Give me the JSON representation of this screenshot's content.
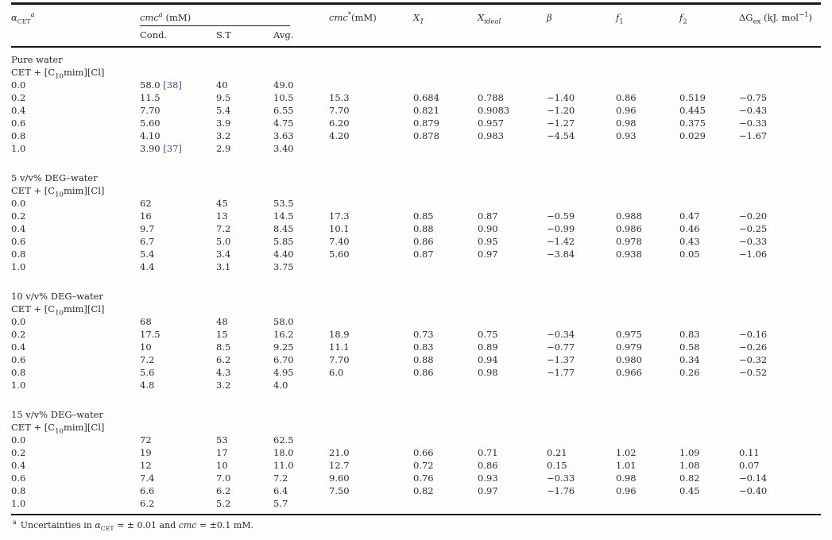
{
  "table": {
    "header": {
      "alpha": {
        "main": "α",
        "sub": "CET",
        "sup": "a"
      },
      "cmc_group": {
        "main": "cmc",
        "sup": "a",
        "unit": " (mM)"
      },
      "sub_columns": [
        "Cond.",
        "S.T",
        "Avg."
      ],
      "cmc_star": {
        "main": "cmc",
        "sup": "*",
        "unit": "(mM)"
      },
      "x1": {
        "main": "X",
        "sub": "1"
      },
      "x_ideal": {
        "main": "X",
        "sub": "ideal"
      },
      "beta": {
        "main": "β"
      },
      "f1": {
        "main": "f",
        "sub": "1"
      },
      "f2": {
        "main": "f",
        "sub": "2"
      },
      "delta_g": {
        "main": "ΔG",
        "sub": "ex",
        "unit_pre": " (kJ. mol",
        "unit_sup": "−1",
        "unit_post": ")"
      }
    },
    "sections": [
      {
        "label": "Pure water",
        "system": {
          "pre": "CET + [C",
          "sub": "10",
          "post": "mim][Cl]"
        },
        "rows": [
          {
            "alpha": "0.0",
            "cond": "58.0",
            "cond_cite": "[38]",
            "st": "40",
            "avg": "49.0"
          },
          {
            "alpha": "0.2",
            "cond": "11.5",
            "st": "9.5",
            "avg": "10.5",
            "cmc_star": "15.3",
            "x1": "0.684",
            "x_ideal": "0.788",
            "beta": "−1.40",
            "f1": "0.86",
            "f2": "0.519",
            "dg": "−0.75"
          },
          {
            "alpha": "0.4",
            "cond": "7.70",
            "st": "5.4",
            "avg": "6.55",
            "cmc_star": "7.70",
            "x1": "0.821",
            "x_ideal": "0.9083",
            "beta": "−1.20",
            "f1": "0.96",
            "f2": "0.445",
            "dg": "−0.43"
          },
          {
            "alpha": "0.6",
            "cond": "5.60",
            "st": "3.9",
            "avg": "4.75",
            "cmc_star": "6.20",
            "x1": "0.879",
            "x_ideal": "0.957",
            "beta": "−1.27",
            "f1": "0.98",
            "f2": "0.375",
            "dg": "−0.33"
          },
          {
            "alpha": "0.8",
            "cond": "4.10",
            "st": "3.2",
            "avg": "3.63",
            "cmc_star": "4.20",
            "x1": "0.878",
            "x_ideal": "0.983",
            "beta": "−4.54",
            "f1": "0.93",
            "f2": "0.029",
            "dg": "−1.67"
          },
          {
            "alpha": "1.0",
            "cond": "3.90",
            "cond_cite": "[37]",
            "st": "2.9",
            "avg": "3.40"
          }
        ]
      },
      {
        "label": "5 v/v% DEG–water",
        "system": {
          "pre": "CET + [C",
          "sub": "10",
          "post": "mim][Cl]"
        },
        "rows": [
          {
            "alpha": "0.0",
            "cond": "62",
            "st": "45",
            "avg": "53.5"
          },
          {
            "alpha": "0.2",
            "cond": "16",
            "st": "13",
            "avg": "14.5",
            "cmc_star": "17.3",
            "x1": "0.85",
            "x_ideal": "0.87",
            "beta": "−0.59",
            "f1": "0.988",
            "f2": "0.47",
            "dg": "−0.20"
          },
          {
            "alpha": "0.4",
            "cond": "9.7",
            "st": "7.2",
            "avg": "8.45",
            "cmc_star": "10.1",
            "x1": "0.88",
            "x_ideal": "0.90",
            "beta": "−0.99",
            "f1": "0.986",
            "f2": "0.46",
            "dg": "−0.25"
          },
          {
            "alpha": "0.6",
            "cond": "6.7",
            "st": "5.0",
            "avg": "5.85",
            "cmc_star": "7.40",
            "x1": "0.86",
            "x_ideal": "0.95",
            "beta": "−1.42",
            "f1": "0.978",
            "f2": "0.43",
            "dg": "−0.33"
          },
          {
            "alpha": "0.8",
            "cond": "5.4",
            "st": "3.4",
            "avg": "4.40",
            "cmc_star": "5.60",
            "x1": "0.87",
            "x_ideal": "0.97",
            "beta": "−3.84",
            "f1": "0.938",
            "f2": "0.05",
            "dg": "−1.06"
          },
          {
            "alpha": "1.0",
            "cond": "4.4",
            "st": "3.1",
            "avg": "3.75"
          }
        ]
      },
      {
        "label": "10 v/v% DEG–water",
        "system": {
          "pre": "CET + [C",
          "sub": "10",
          "post": "mim][Cl]"
        },
        "rows": [
          {
            "alpha": "0.0",
            "cond": "68",
            "st": "48",
            "avg": "58.0"
          },
          {
            "alpha": "0.2",
            "cond": "17.5",
            "st": "15",
            "avg": "16.2",
            "cmc_star": "18.9",
            "x1": "0.73",
            "x_ideal": "0.75",
            "beta": "−0.34",
            "f1": "0.975",
            "f2": "0.83",
            "dg": "−0.16"
          },
          {
            "alpha": "0.4",
            "cond": "10",
            "st": "8.5",
            "avg": "9.25",
            "cmc_star": "11.1",
            "x1": "0.83",
            "x_ideal": "0.89",
            "beta": "−0.77",
            "f1": "0.979",
            "f2": "0.58",
            "dg": "−0.26"
          },
          {
            "alpha": "0.6",
            "cond": "7.2",
            "st": "6.2",
            "avg": "6.70",
            "cmc_star": "7.70",
            "x1": "0.88",
            "x_ideal": "0.94",
            "beta": "−1.37",
            "f1": "0.980",
            "f2": "0.34",
            "dg": "−0.32"
          },
          {
            "alpha": "0.8",
            "cond": "5.6",
            "st": "4.3",
            "avg": "4.95",
            "cmc_star": "6.0",
            "x1": "0.86",
            "x_ideal": "0.98",
            "beta": "−1.77",
            "f1": "0.966",
            "f2": "0.26",
            "dg": "−0.52"
          },
          {
            "alpha": "1.0",
            "cond": "4.8",
            "st": "3.2",
            "avg": "4.0"
          }
        ]
      },
      {
        "label": "15 v/v% DEG–water",
        "system": {
          "pre": "CET + [C",
          "sub": "10",
          "post": "mim][Cl]"
        },
        "rows": [
          {
            "alpha": "0.0",
            "cond": "72",
            "st": "53",
            "avg": "62.5"
          },
          {
            "alpha": "0.2",
            "cond": "19",
            "st": "17",
            "avg": "18.0",
            "cmc_star": "21.0",
            "x1": "0.66",
            "x_ideal": "0.71",
            "beta": "0.21",
            "f1": "1.02",
            "f2": "1.09",
            "dg": "0.11"
          },
          {
            "alpha": "0.4",
            "cond": "12",
            "st": "10",
            "avg": "11.0",
            "cmc_star": "12.7",
            "x1": "0.72",
            "x_ideal": "0.86",
            "beta": "0.15",
            "f1": "1.01",
            "f2": "1.08",
            "dg": "0.07"
          },
          {
            "alpha": "0.6",
            "cond": "7.4",
            "st": "7.0",
            "avg": "7.2",
            "cmc_star": "9.60",
            "x1": "0.76",
            "x_ideal": "0.93",
            "beta": "−0.33",
            "f1": "0.98",
            "f2": "0.82",
            "dg": "−0.14"
          },
          {
            "alpha": "0.8",
            "cond": "6.6",
            "st": "6.2",
            "avg": "6.4",
            "cmc_star": "7.50",
            "x1": "0.82",
            "x_ideal": "0.97",
            "beta": "−1.76",
            "f1": "0.96",
            "f2": "0.45",
            "dg": "−0.40"
          },
          {
            "alpha": "1.0",
            "cond": "6.2",
            "st": "5.2",
            "avg": "5.7"
          }
        ]
      }
    ],
    "footnote": {
      "marker": "a",
      "part1": "Uncertainties in ",
      "alpha": "α",
      "alpha_sub": "CET",
      "part2": " = ± 0.01 and ",
      "cmc": "cmc",
      "part3": " = ±0.1 mM."
    }
  },
  "colors": {
    "citation": "#3b4a9b",
    "text": "#2b2b2b",
    "rule": "#1a1a1a",
    "background": "#fdfdfb"
  }
}
